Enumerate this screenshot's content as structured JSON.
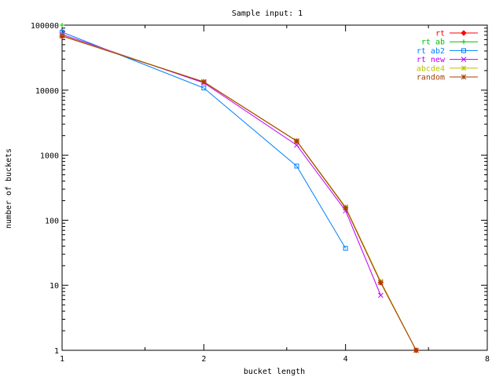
{
  "chart_data": {
    "type": "line",
    "title": "Sample input: 1",
    "xlabel": "bucket length",
    "ylabel": "number of buckets",
    "x_scale": "log2",
    "y_scale": "log10",
    "xlim": [
      1,
      8
    ],
    "ylim": [
      1,
      100000
    ],
    "x_ticks": [
      {
        "value": 1,
        "label": "1"
      },
      {
        "value": 2,
        "label": "2"
      },
      {
        "value": 4,
        "label": "4"
      },
      {
        "value": 8,
        "label": "8"
      }
    ],
    "y_ticks": [
      {
        "value": 1,
        "label": "1"
      },
      {
        "value": 10,
        "label": "10"
      },
      {
        "value": 100,
        "label": "100"
      },
      {
        "value": 1000,
        "label": "1000"
      },
      {
        "value": 10000,
        "label": "10000"
      },
      {
        "value": 100000,
        "label": "100000"
      }
    ],
    "legend_position": "top-right",
    "grid": false,
    "series": [
      {
        "name": "rt",
        "color": "#ff0000",
        "marker": "diamond",
        "points": [
          [
            1,
            68000
          ],
          [
            2,
            13400
          ],
          [
            3.15,
            1650
          ],
          [
            4,
            155
          ],
          [
            4.75,
            11
          ],
          [
            5.65,
            1
          ]
        ]
      },
      {
        "name": "rt ab",
        "color": "#00c000",
        "marker": "plus",
        "points": [
          [
            1,
            100000
          ]
        ]
      },
      {
        "name": "rt ab2",
        "color": "#0080ff",
        "marker": "square",
        "points": [
          [
            1,
            78000
          ],
          [
            2,
            10800
          ],
          [
            3.15,
            680
          ],
          [
            4,
            37
          ]
        ]
      },
      {
        "name": "rt new",
        "color": "#c000ff",
        "marker": "x",
        "points": [
          [
            1,
            72000
          ],
          [
            2,
            13000
          ],
          [
            3.15,
            1430
          ],
          [
            4,
            140
          ],
          [
            4.75,
            7
          ]
        ]
      },
      {
        "name": "abcde4",
        "color": "#c0c000",
        "marker": "star",
        "points": [
          [
            1,
            69000
          ],
          [
            2,
            13500
          ],
          [
            3.15,
            1670
          ],
          [
            4,
            160
          ],
          [
            4.75,
            11.5
          ],
          [
            5.65,
            1
          ]
        ]
      },
      {
        "name": "random",
        "color": "#a0400a",
        "marker": "star",
        "points": [
          [
            1,
            68000
          ],
          [
            2,
            13400
          ],
          [
            3.15,
            1650
          ],
          [
            4,
            155
          ],
          [
            4.75,
            11
          ],
          [
            5.65,
            1
          ]
        ]
      }
    ]
  }
}
